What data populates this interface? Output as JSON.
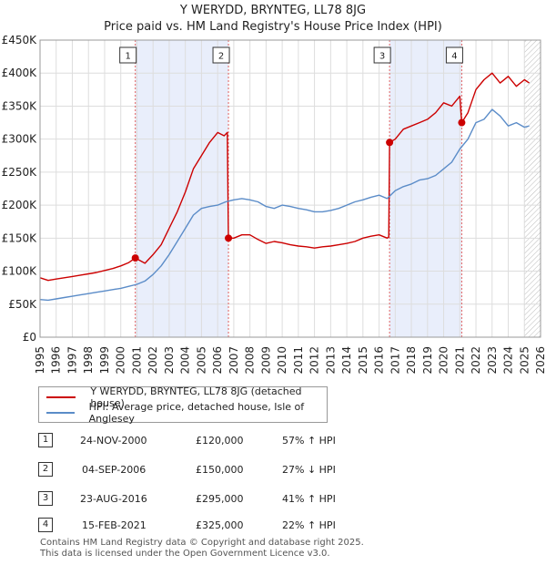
{
  "chart_data": {
    "type": "line",
    "title": "Y WERYDD, BRYNTEG, LL78 8JG",
    "subtitle": "Price paid vs. HM Land Registry's House Price Index (HPI)",
    "x_range": [
      1995,
      2026
    ],
    "ylim": [
      0,
      450000
    ],
    "y_ticks": [
      0,
      50000,
      100000,
      150000,
      200000,
      250000,
      300000,
      350000,
      400000,
      450000
    ],
    "y_tick_labels": [
      "£0",
      "£50K",
      "£100K",
      "£150K",
      "£200K",
      "£250K",
      "£300K",
      "£350K",
      "£400K",
      "£450K"
    ],
    "x_ticks": [
      1995,
      1996,
      1997,
      1998,
      1999,
      2000,
      2001,
      2002,
      2003,
      2004,
      2005,
      2006,
      2007,
      2008,
      2009,
      2010,
      2011,
      2012,
      2013,
      2014,
      2015,
      2016,
      2017,
      2018,
      2019,
      2020,
      2021,
      2022,
      2023,
      2024,
      2025,
      2026
    ],
    "grid": true,
    "future_hatch_from": 2025.0,
    "series": [
      {
        "name": "Y WERYDD, BRYNTEG, LL78 8JG (detached house)",
        "color": "#cc0000",
        "x": [
          1995.0,
          1995.5,
          1996.0,
          1996.5,
          1997.0,
          1997.5,
          1998.0,
          1998.5,
          1999.0,
          1999.5,
          2000.0,
          2000.5,
          2000.9,
          2001.5,
          2002.0,
          2002.5,
          2003.0,
          2003.5,
          2004.0,
          2004.5,
          2005.0,
          2005.5,
          2006.0,
          2006.4,
          2006.6,
          2006.67,
          2007.0,
          2007.5,
          2008.0,
          2008.5,
          2009.0,
          2009.5,
          2010.0,
          2010.5,
          2011.0,
          2011.5,
          2012.0,
          2012.5,
          2013.0,
          2013.5,
          2014.0,
          2014.5,
          2015.0,
          2015.5,
          2016.0,
          2016.5,
          2016.6,
          2016.65,
          2017.0,
          2017.5,
          2018.0,
          2018.5,
          2019.0,
          2019.5,
          2020.0,
          2020.5,
          2021.0,
          2021.12,
          2021.5,
          2022.0,
          2022.5,
          2023.0,
          2023.5,
          2024.0,
          2024.5,
          2025.0,
          2025.3
        ],
        "y": [
          90000,
          86000,
          88000,
          90000,
          92000,
          94000,
          96000,
          98000,
          101000,
          104000,
          108000,
          113000,
          120000,
          112000,
          125000,
          140000,
          165000,
          190000,
          220000,
          255000,
          275000,
          295000,
          310000,
          305000,
          310000,
          150000,
          150000,
          155000,
          155000,
          148000,
          142000,
          145000,
          143000,
          140000,
          138000,
          137000,
          135000,
          137000,
          138000,
          140000,
          142000,
          145000,
          150000,
          153000,
          155000,
          150000,
          152000,
          295000,
          300000,
          315000,
          320000,
          325000,
          330000,
          340000,
          355000,
          350000,
          365000,
          325000,
          340000,
          375000,
          390000,
          400000,
          385000,
          395000,
          380000,
          390000,
          385000
        ],
        "sales": [
          {
            "x": 2000.9,
            "y": 120000
          },
          {
            "x": 2006.67,
            "y": 150000
          },
          {
            "x": 2016.65,
            "y": 295000
          },
          {
            "x": 2021.12,
            "y": 325000
          }
        ]
      },
      {
        "name": "HPI: Average price, detached house, Isle of Anglesey",
        "color": "#5b8cc8",
        "x": [
          1995.0,
          1995.5,
          1996.0,
          1996.5,
          1997.0,
          1997.5,
          1998.0,
          1998.5,
          1999.0,
          1999.5,
          2000.0,
          2000.5,
          2001.0,
          2001.5,
          2002.0,
          2002.5,
          2003.0,
          2003.5,
          2004.0,
          2004.5,
          2005.0,
          2005.5,
          2006.0,
          2006.5,
          2007.0,
          2007.5,
          2008.0,
          2008.5,
          2009.0,
          2009.5,
          2010.0,
          2010.5,
          2011.0,
          2011.5,
          2012.0,
          2012.5,
          2013.0,
          2013.5,
          2014.0,
          2014.5,
          2015.0,
          2015.5,
          2016.0,
          2016.5,
          2017.0,
          2017.5,
          2018.0,
          2018.5,
          2019.0,
          2019.5,
          2020.0,
          2020.5,
          2021.0,
          2021.5,
          2022.0,
          2022.5,
          2023.0,
          2023.5,
          2024.0,
          2024.5,
          2025.0,
          2025.3
        ],
        "y": [
          57000,
          56000,
          58000,
          60000,
          62000,
          64000,
          66000,
          68000,
          70000,
          72000,
          74000,
          77000,
          80000,
          85000,
          95000,
          108000,
          125000,
          145000,
          165000,
          185000,
          195000,
          198000,
          200000,
          205000,
          208000,
          210000,
          208000,
          205000,
          198000,
          195000,
          200000,
          198000,
          195000,
          193000,
          190000,
          190000,
          192000,
          195000,
          200000,
          205000,
          208000,
          212000,
          215000,
          210000,
          222000,
          228000,
          232000,
          238000,
          240000,
          245000,
          255000,
          265000,
          285000,
          300000,
          325000,
          330000,
          345000,
          335000,
          320000,
          325000,
          318000,
          320000
        ]
      }
    ],
    "markers": [
      {
        "label": "1",
        "x": 2000.9
      },
      {
        "label": "2",
        "x": 2006.67
      },
      {
        "label": "3",
        "x": 2016.65
      },
      {
        "label": "4",
        "x": 2021.12
      }
    ]
  },
  "legend": {
    "entries": [
      {
        "label": "Y WERYDD, BRYNTEG, LL78 8JG (detached house)",
        "color": "#cc0000"
      },
      {
        "label": "HPI: Average price, detached house, Isle of Anglesey",
        "color": "#5b8cc8"
      }
    ]
  },
  "transactions": [
    {
      "num": "1",
      "date": "24-NOV-2000",
      "price": "£120,000",
      "hpi": "57% ↑ HPI"
    },
    {
      "num": "2",
      "date": "04-SEP-2006",
      "price": "£150,000",
      "hpi": "27% ↓ HPI"
    },
    {
      "num": "3",
      "date": "23-AUG-2016",
      "price": "£295,000",
      "hpi": "41% ↑ HPI"
    },
    {
      "num": "4",
      "date": "15-FEB-2021",
      "price": "£325,000",
      "hpi": "22% ↑ HPI"
    }
  ],
  "footer": {
    "line1": "Contains HM Land Registry data © Copyright and database right 2025.",
    "line2": "This data is licensed under the Open Government Licence v3.0."
  }
}
